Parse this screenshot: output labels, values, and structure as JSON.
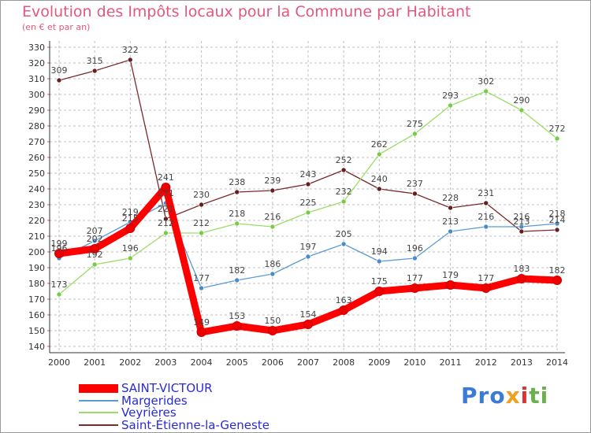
{
  "header": {
    "title": "Evolution des Impôts locaux pour la Commune par Habitant",
    "subtitle": "(en € et par an)"
  },
  "logo": {
    "text": "Proxiti",
    "parts": [
      "Pro",
      "x",
      "i",
      "ti"
    ]
  },
  "colors": {
    "title": "#e4577e",
    "axis": "#333333",
    "grid": "#bfbfbf",
    "legend_text": "#2a2ad8"
  },
  "chart_data": {
    "type": "line",
    "title": "Evolution des Impôts locaux pour la Commune par Habitant",
    "subtitle": "(en € et par an)",
    "xlabel": "",
    "ylabel": "",
    "x": [
      "2000",
      "2001",
      "2002",
      "2003",
      "2004",
      "2005",
      "2006",
      "2007",
      "2008",
      "2009",
      "2010",
      "2011",
      "2012",
      "2013",
      "2014"
    ],
    "y_ticks": [
      "140",
      "150",
      "160",
      "170",
      "180",
      "190",
      "200",
      "210",
      "220",
      "230",
      "240",
      "250",
      "260",
      "270",
      "280",
      "290",
      "300",
      "310",
      "320",
      "330"
    ],
    "ylim": [
      140,
      330
    ],
    "grid": true,
    "series": [
      {
        "name": "SAINT-VICTOUR",
        "color": "#ff0000",
        "marker_color": "#ee0000",
        "width": "thick",
        "values": [
          199,
          202,
          215,
          241,
          149,
          153,
          150,
          154,
          163,
          175,
          177,
          179,
          177,
          183,
          182
        ],
        "labels": [
          "199",
          "202",
          "215",
          "241",
          "149",
          "153",
          "150",
          "154",
          "163",
          "175",
          "177",
          "179",
          "177",
          "183",
          "182"
        ]
      },
      {
        "name": "Margerides",
        "color": "#5b9bd5",
        "marker_color": "#4a8bc8",
        "width": "thin",
        "values": [
          196,
          207,
          219,
          231,
          177,
          182,
          186,
          197,
          205,
          194,
          196,
          213,
          216,
          216,
          218
        ],
        "labels": [
          "196",
          "207",
          "219",
          "231",
          "177",
          "182",
          "186",
          "197",
          "205",
          "194",
          "196",
          "213",
          "216",
          "216",
          "218"
        ]
      },
      {
        "name": "Veyrières",
        "color": "#99dd66",
        "marker_color": "#77cc44",
        "width": "thin",
        "values": [
          173,
          192,
          196,
          212,
          212,
          218,
          216,
          225,
          232,
          262,
          275,
          293,
          302,
          290,
          272
        ],
        "labels": [
          "173",
          "192",
          "196",
          "212",
          "212",
          "218",
          "216",
          "225",
          "232",
          "262",
          "275",
          "293",
          "302",
          "290",
          "272"
        ]
      },
      {
        "name": "Saint-Étienne-la-Geneste",
        "color": "#7a2a2a",
        "marker_color": "#661f1f",
        "width": "thin",
        "values": [
          309,
          315,
          322,
          221,
          230,
          238,
          239,
          243,
          252,
          240,
          237,
          228,
          231,
          213,
          214
        ],
        "labels": [
          "309",
          "315",
          "322",
          "221",
          "230",
          "238",
          "239",
          "243",
          "252",
          "240",
          "237",
          "228",
          "231",
          "213",
          "214"
        ]
      }
    ]
  }
}
